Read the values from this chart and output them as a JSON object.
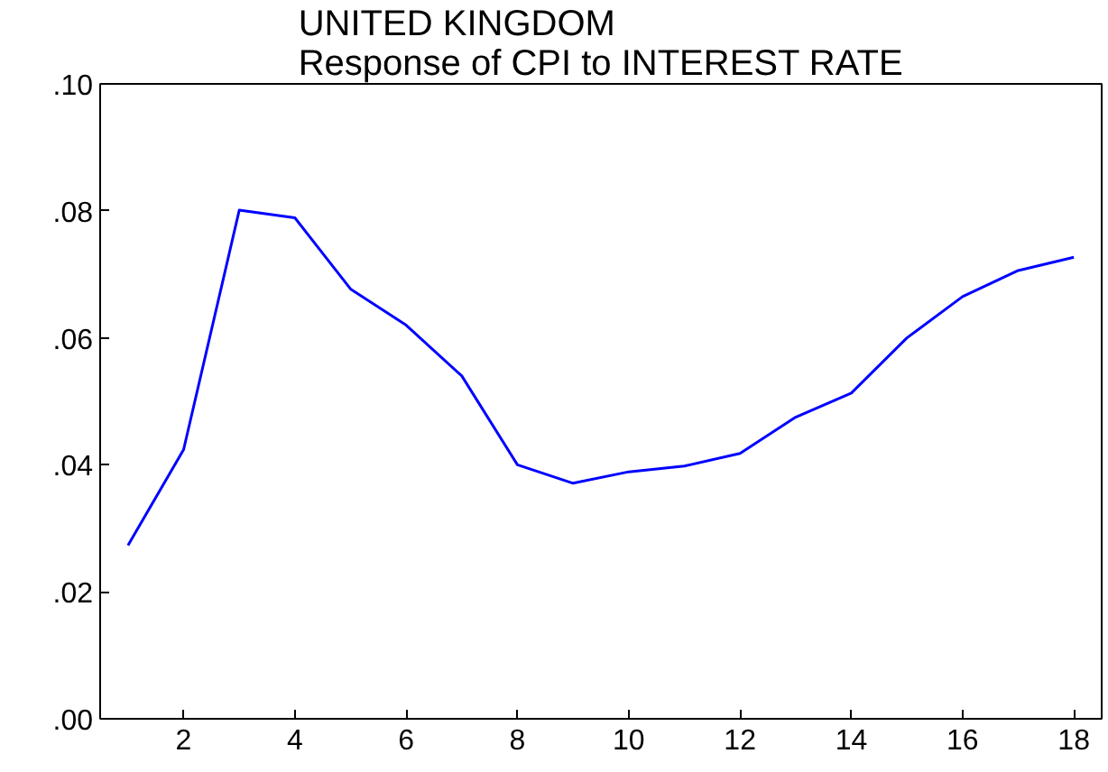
{
  "chart_data": {
    "type": "line",
    "title": "UNITED KINGDOM\nResponse of CPI to INTEREST RATE",
    "x": [
      1,
      2,
      3,
      4,
      5,
      6,
      7,
      8,
      9,
      10,
      11,
      12,
      13,
      14,
      15,
      16,
      17,
      18
    ],
    "series": [
      {
        "color": "#0000ff",
        "values": [
          0.0273,
          0.0424,
          0.0801,
          0.0789,
          0.0677,
          0.062,
          0.054,
          0.04,
          0.0371,
          0.0389,
          0.0398,
          0.0418,
          0.0475,
          0.0513,
          0.06,
          0.0665,
          0.0706,
          0.0727
        ]
      }
    ],
    "xlim": [
      0.5,
      18.5
    ],
    "xticks": [
      2,
      4,
      6,
      8,
      10,
      12,
      14,
      16,
      18
    ],
    "ylim": [
      0.0,
      0.1
    ],
    "yticks": [
      {
        "value": 0.0,
        "label": ".00"
      },
      {
        "value": 0.02,
        "label": ".02"
      },
      {
        "value": 0.04,
        "label": ".04"
      },
      {
        "value": 0.06,
        "label": ".06"
      },
      {
        "value": 0.08,
        "label": ".08"
      },
      {
        "value": 0.1,
        "label": ".10"
      }
    ],
    "grid": false,
    "marker": "none",
    "line_style": "solid"
  }
}
